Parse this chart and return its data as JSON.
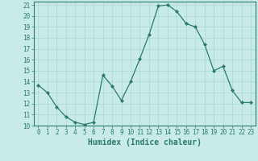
{
  "x": [
    0,
    1,
    2,
    3,
    4,
    5,
    6,
    7,
    8,
    9,
    10,
    11,
    12,
    13,
    14,
    15,
    16,
    17,
    18,
    19,
    20,
    21,
    22,
    23
  ],
  "y": [
    13.7,
    13.0,
    11.7,
    10.8,
    10.3,
    10.1,
    10.3,
    14.6,
    13.6,
    12.3,
    14.0,
    16.1,
    18.3,
    20.9,
    21.0,
    20.4,
    19.3,
    19.0,
    17.4,
    15.0,
    15.4,
    13.2,
    12.1,
    12.1
  ],
  "line_color": "#2a7a6e",
  "marker": "D",
  "marker_size": 2.0,
  "bg_color": "#c8ebe8",
  "grid_color": "#a8d8d4",
  "xlabel": "Humidex (Indice chaleur)",
  "ylim": [
    10,
    21
  ],
  "xlim_min": -0.5,
  "xlim_max": 23.5,
  "yticks": [
    10,
    11,
    12,
    13,
    14,
    15,
    16,
    17,
    18,
    19,
    20,
    21
  ],
  "xticks": [
    0,
    1,
    2,
    3,
    4,
    5,
    6,
    7,
    8,
    9,
    10,
    11,
    12,
    13,
    14,
    15,
    16,
    17,
    18,
    19,
    20,
    21,
    22,
    23
  ],
  "tick_color": "#2a7a6e",
  "tick_fontsize": 5.5,
  "xlabel_fontsize": 7.0,
  "xlabel_color": "#2a7a6e",
  "axis_color": "#2a7a6e",
  "linewidth": 0.9
}
